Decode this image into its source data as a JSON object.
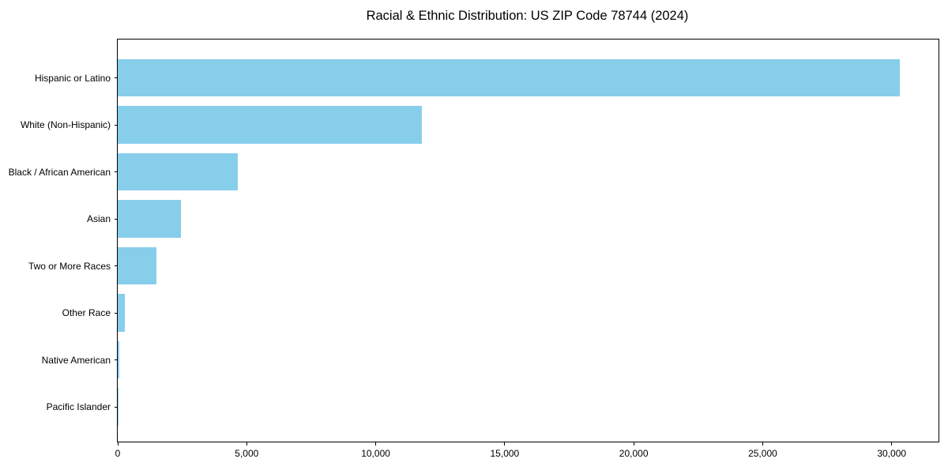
{
  "title": "Racial & Ethnic Distribution: US ZIP Code 78744 (2024)",
  "colors": {
    "bar": "#87CEEB",
    "background": "#ffffff",
    "axis": "#000000",
    "text": "#000000"
  },
  "chart_data": {
    "type": "bar",
    "orientation": "horizontal",
    "title": "Racial & Ethnic Distribution: US ZIP Code 78744 (2024)",
    "xlabel": "",
    "ylabel": "",
    "categories": [
      "Hispanic or Latino",
      "White (Non-Hispanic)",
      "Black / African American",
      "Asian",
      "Two or More Races",
      "Other Race",
      "Native American",
      "Pacific Islander"
    ],
    "values": [
      30300,
      11800,
      4650,
      2450,
      1500,
      280,
      50,
      15
    ],
    "xlim": [
      0,
      31815
    ],
    "x_ticks": [
      0,
      5000,
      10000,
      15000,
      20000,
      25000,
      30000
    ],
    "x_tick_labels": [
      "0",
      "5,000",
      "10,000",
      "15,000",
      "20,000",
      "25,000",
      "30,000"
    ],
    "bar_color": "#87CEEB",
    "grid": false,
    "legend": null
  }
}
